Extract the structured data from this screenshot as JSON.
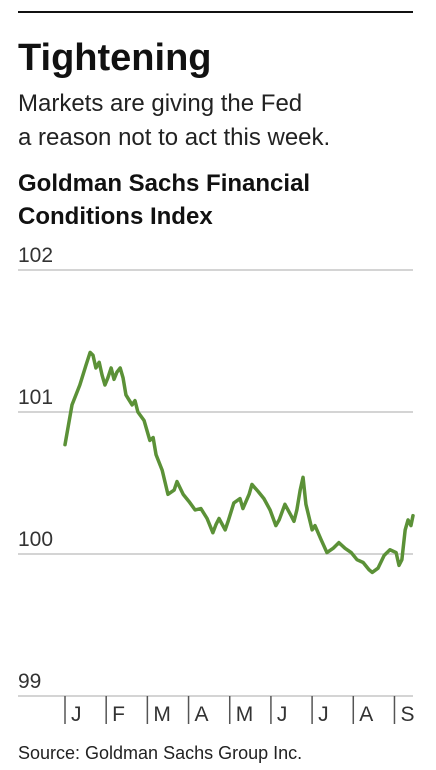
{
  "chart_data": {
    "type": "line",
    "title": "Tightening",
    "subtitle": [
      "Markets are giving the Fed",
      "a reason not to act this week."
    ],
    "chart_title": [
      "Goldman Sachs Financial",
      "Conditions Index"
    ],
    "source": "Source: Goldman Sachs Group Inc.",
    "xlim": [
      0,
      8.45
    ],
    "xticks": [
      {
        "value": 0,
        "label": "J"
      },
      {
        "value": 1,
        "label": "F"
      },
      {
        "value": 2,
        "label": "M"
      },
      {
        "value": 3,
        "label": "A"
      },
      {
        "value": 4,
        "label": "M"
      },
      {
        "value": 5,
        "label": "J"
      },
      {
        "value": 6,
        "label": "J"
      },
      {
        "value": 7,
        "label": "A"
      },
      {
        "value": 8,
        "label": "S"
      }
    ],
    "ylim": [
      99,
      102
    ],
    "yticks": [
      99,
      100,
      101,
      102
    ],
    "grid": true,
    "x": [
      0,
      0.17,
      0.36,
      0.51,
      0.61,
      0.68,
      0.75,
      0.83,
      0.9,
      0.97,
      1.04,
      1.12,
      1.19,
      1.26,
      1.34,
      1.41,
      1.48,
      1.63,
      1.7,
      1.77,
      1.92,
      2.06,
      2.14,
      2.21,
      2.36,
      2.5,
      2.65,
      2.72,
      2.87,
      3.01,
      3.16,
      3.3,
      3.45,
      3.59,
      3.67,
      3.74,
      3.89,
      3.96,
      4.1,
      4.25,
      4.32,
      4.47,
      4.54,
      4.69,
      4.83,
      4.98,
      5.12,
      5.2,
      5.34,
      5.49,
      5.56,
      5.63,
      5.71,
      5.78,
      5.85,
      6,
      6.07,
      6.22,
      6.36,
      6.51,
      6.65,
      6.8,
      6.95,
      7.09,
      7.24,
      7.38,
      7.46,
      7.6,
      7.75,
      7.89,
      8.04,
      8.11,
      8.18,
      8.26,
      8.33,
      8.4,
      8.45
    ],
    "series": [
      {
        "color": "#5b9137",
        "values": [
          100.77,
          101.05,
          101.19,
          101.33,
          101.42,
          101.4,
          101.31,
          101.35,
          101.26,
          101.19,
          101.24,
          101.31,
          101.23,
          101.28,
          101.31,
          101.24,
          101.12,
          101.05,
          101.08,
          101,
          100.94,
          100.8,
          100.82,
          100.7,
          100.59,
          100.42,
          100.45,
          100.51,
          100.42,
          100.37,
          100.31,
          100.32,
          100.25,
          100.15,
          100.21,
          100.25,
          100.17,
          100.23,
          100.36,
          100.39,
          100.32,
          100.42,
          100.49,
          100.44,
          100.39,
          100.31,
          100.2,
          100.24,
          100.35,
          100.27,
          100.23,
          100.31,
          100.45,
          100.54,
          100.35,
          100.17,
          100.2,
          100.1,
          100.01,
          100.04,
          100.08,
          100.04,
          100.01,
          99.96,
          99.94,
          99.89,
          99.87,
          99.9,
          99.99,
          100.03,
          100.01,
          99.92,
          99.96,
          100.17,
          100.24,
          100.2,
          100.27
        ]
      }
    ]
  }
}
